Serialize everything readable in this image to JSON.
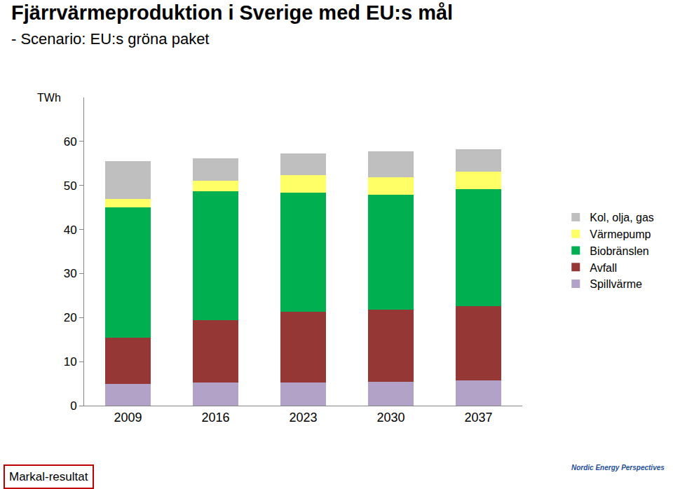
{
  "chart_data": {
    "type": "bar",
    "title": "Fjärrvärmeproduktion i Sverige med EU:s mål",
    "subtitle": "- Scenario: EU:s gröna paket",
    "y_label": "TWh",
    "categories": [
      "2009",
      "2016",
      "2023",
      "2030",
      "2037"
    ],
    "series": [
      {
        "name": "Spillvärme",
        "color": "#b3a2c7",
        "values": [
          4.9,
          5.3,
          5.3,
          5.4,
          5.7
        ]
      },
      {
        "name": "Avfall",
        "color": "#953735",
        "values": [
          10.6,
          14.1,
          16.0,
          16.4,
          16.9
        ]
      },
      {
        "name": "Biobränslen",
        "color": "#00b050",
        "values": [
          29.6,
          29.3,
          27.1,
          26.1,
          26.6
        ]
      },
      {
        "name": "Värmepump",
        "color": "#ffff66",
        "values": [
          1.9,
          2.3,
          4.0,
          3.9,
          4.0
        ]
      },
      {
        "name": "Kol, olja, gas",
        "color": "#bfbfbf",
        "values": [
          8.6,
          5.2,
          4.9,
          6.0,
          5.1
        ]
      }
    ],
    "stacked": true,
    "ylim": [
      0,
      70
    ],
    "yticks": [
      0,
      10,
      20,
      30,
      40,
      50,
      60
    ],
    "grid": false,
    "legend": "right",
    "annotations": [
      "Markal-resultat",
      "Nordic Energy Perspectives"
    ]
  }
}
